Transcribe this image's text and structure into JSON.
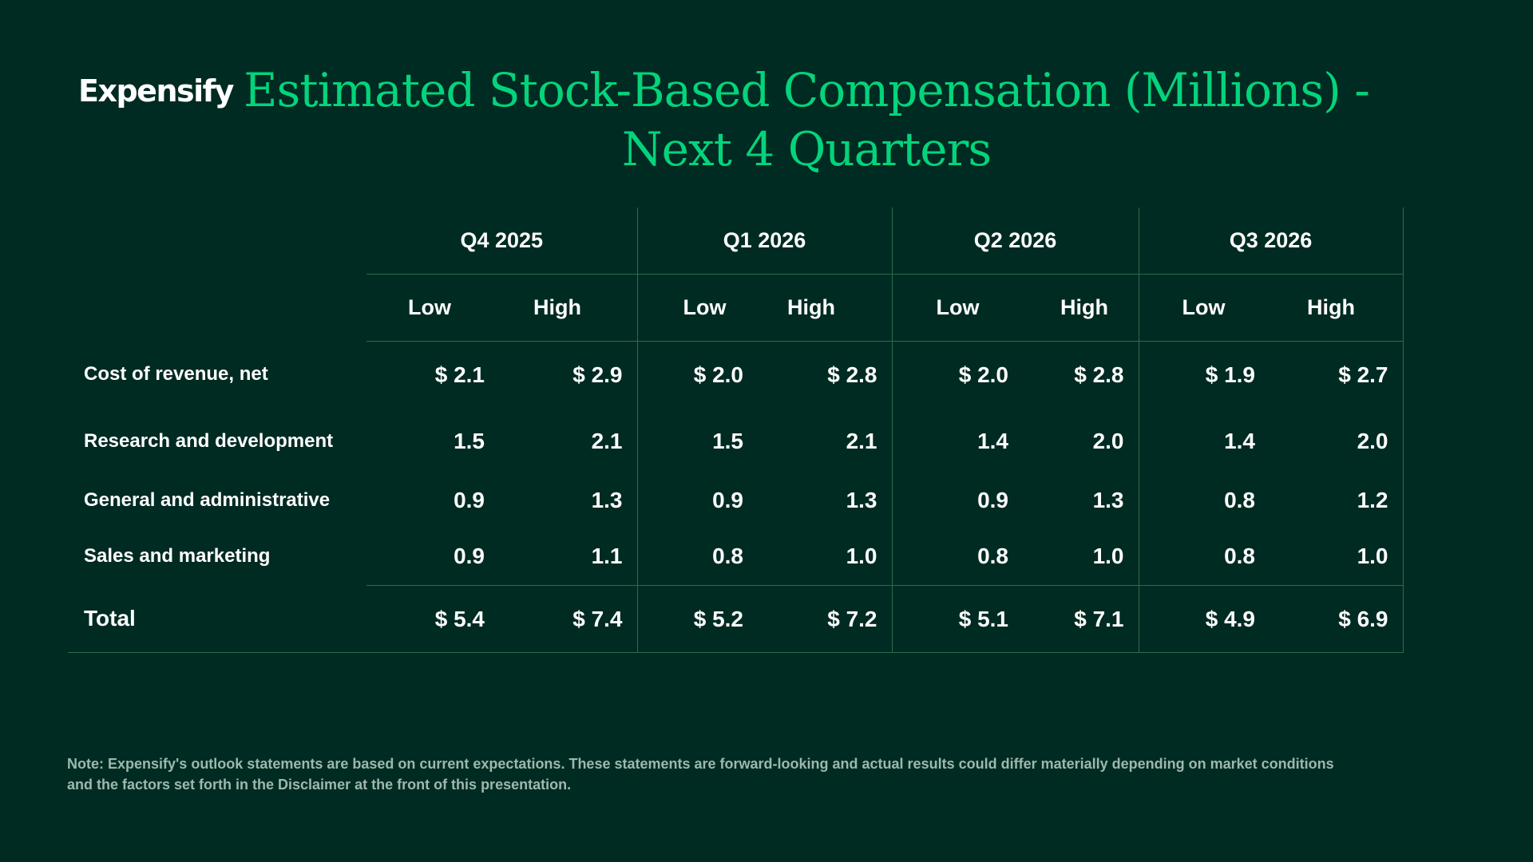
{
  "logo": "Expensify",
  "title": "Estimated Stock-Based Compensation (Millions) - Next 4 Quarters",
  "table": {
    "quarters": [
      "Q4 2025",
      "Q1 2026",
      "Q2 2026",
      "Q3 2026"
    ],
    "sub_headers": [
      "Low",
      "High",
      "Low",
      "High",
      "Low",
      "High",
      "Low",
      "High"
    ],
    "rows": [
      {
        "label": "Cost of revenue, net",
        "values": [
          "$ 2.1",
          "$ 2.9",
          "$ 2.0",
          "$ 2.8",
          "$ 2.0",
          "$ 2.8",
          "$ 1.9",
          "$ 2.7"
        ]
      },
      {
        "label": "Research and development",
        "values": [
          "1.5",
          "2.1",
          "1.5",
          "2.1",
          "1.4",
          "2.0",
          "1.4",
          "2.0"
        ]
      },
      {
        "label": "General and administrative",
        "values": [
          "0.9",
          "1.3",
          "0.9",
          "1.3",
          "0.9",
          "1.3",
          "0.8",
          "1.2"
        ]
      },
      {
        "label": "Sales and marketing",
        "values": [
          "0.9",
          "1.1",
          "0.8",
          "1.0",
          "0.8",
          "1.0",
          "0.8",
          "1.0"
        ]
      }
    ],
    "total": {
      "label": "Total",
      "values": [
        "$ 5.4",
        "$ 7.4",
        "$ 5.2",
        "$ 7.2",
        "$ 5.1",
        "$ 7.1",
        "$ 4.9",
        "$ 6.9"
      ]
    }
  },
  "note": "Note: Expensify's outlook statements are based on current expectations. These statements are forward-looking and actual results could differ materially depending on market conditions and the factors set forth in the Disclaimer at the front of this presentation.",
  "colors": {
    "background": "#002b22",
    "title": "#03d47c",
    "text": "#ffffff",
    "note": "#9db8ad",
    "rule": "#2c6b4d"
  }
}
